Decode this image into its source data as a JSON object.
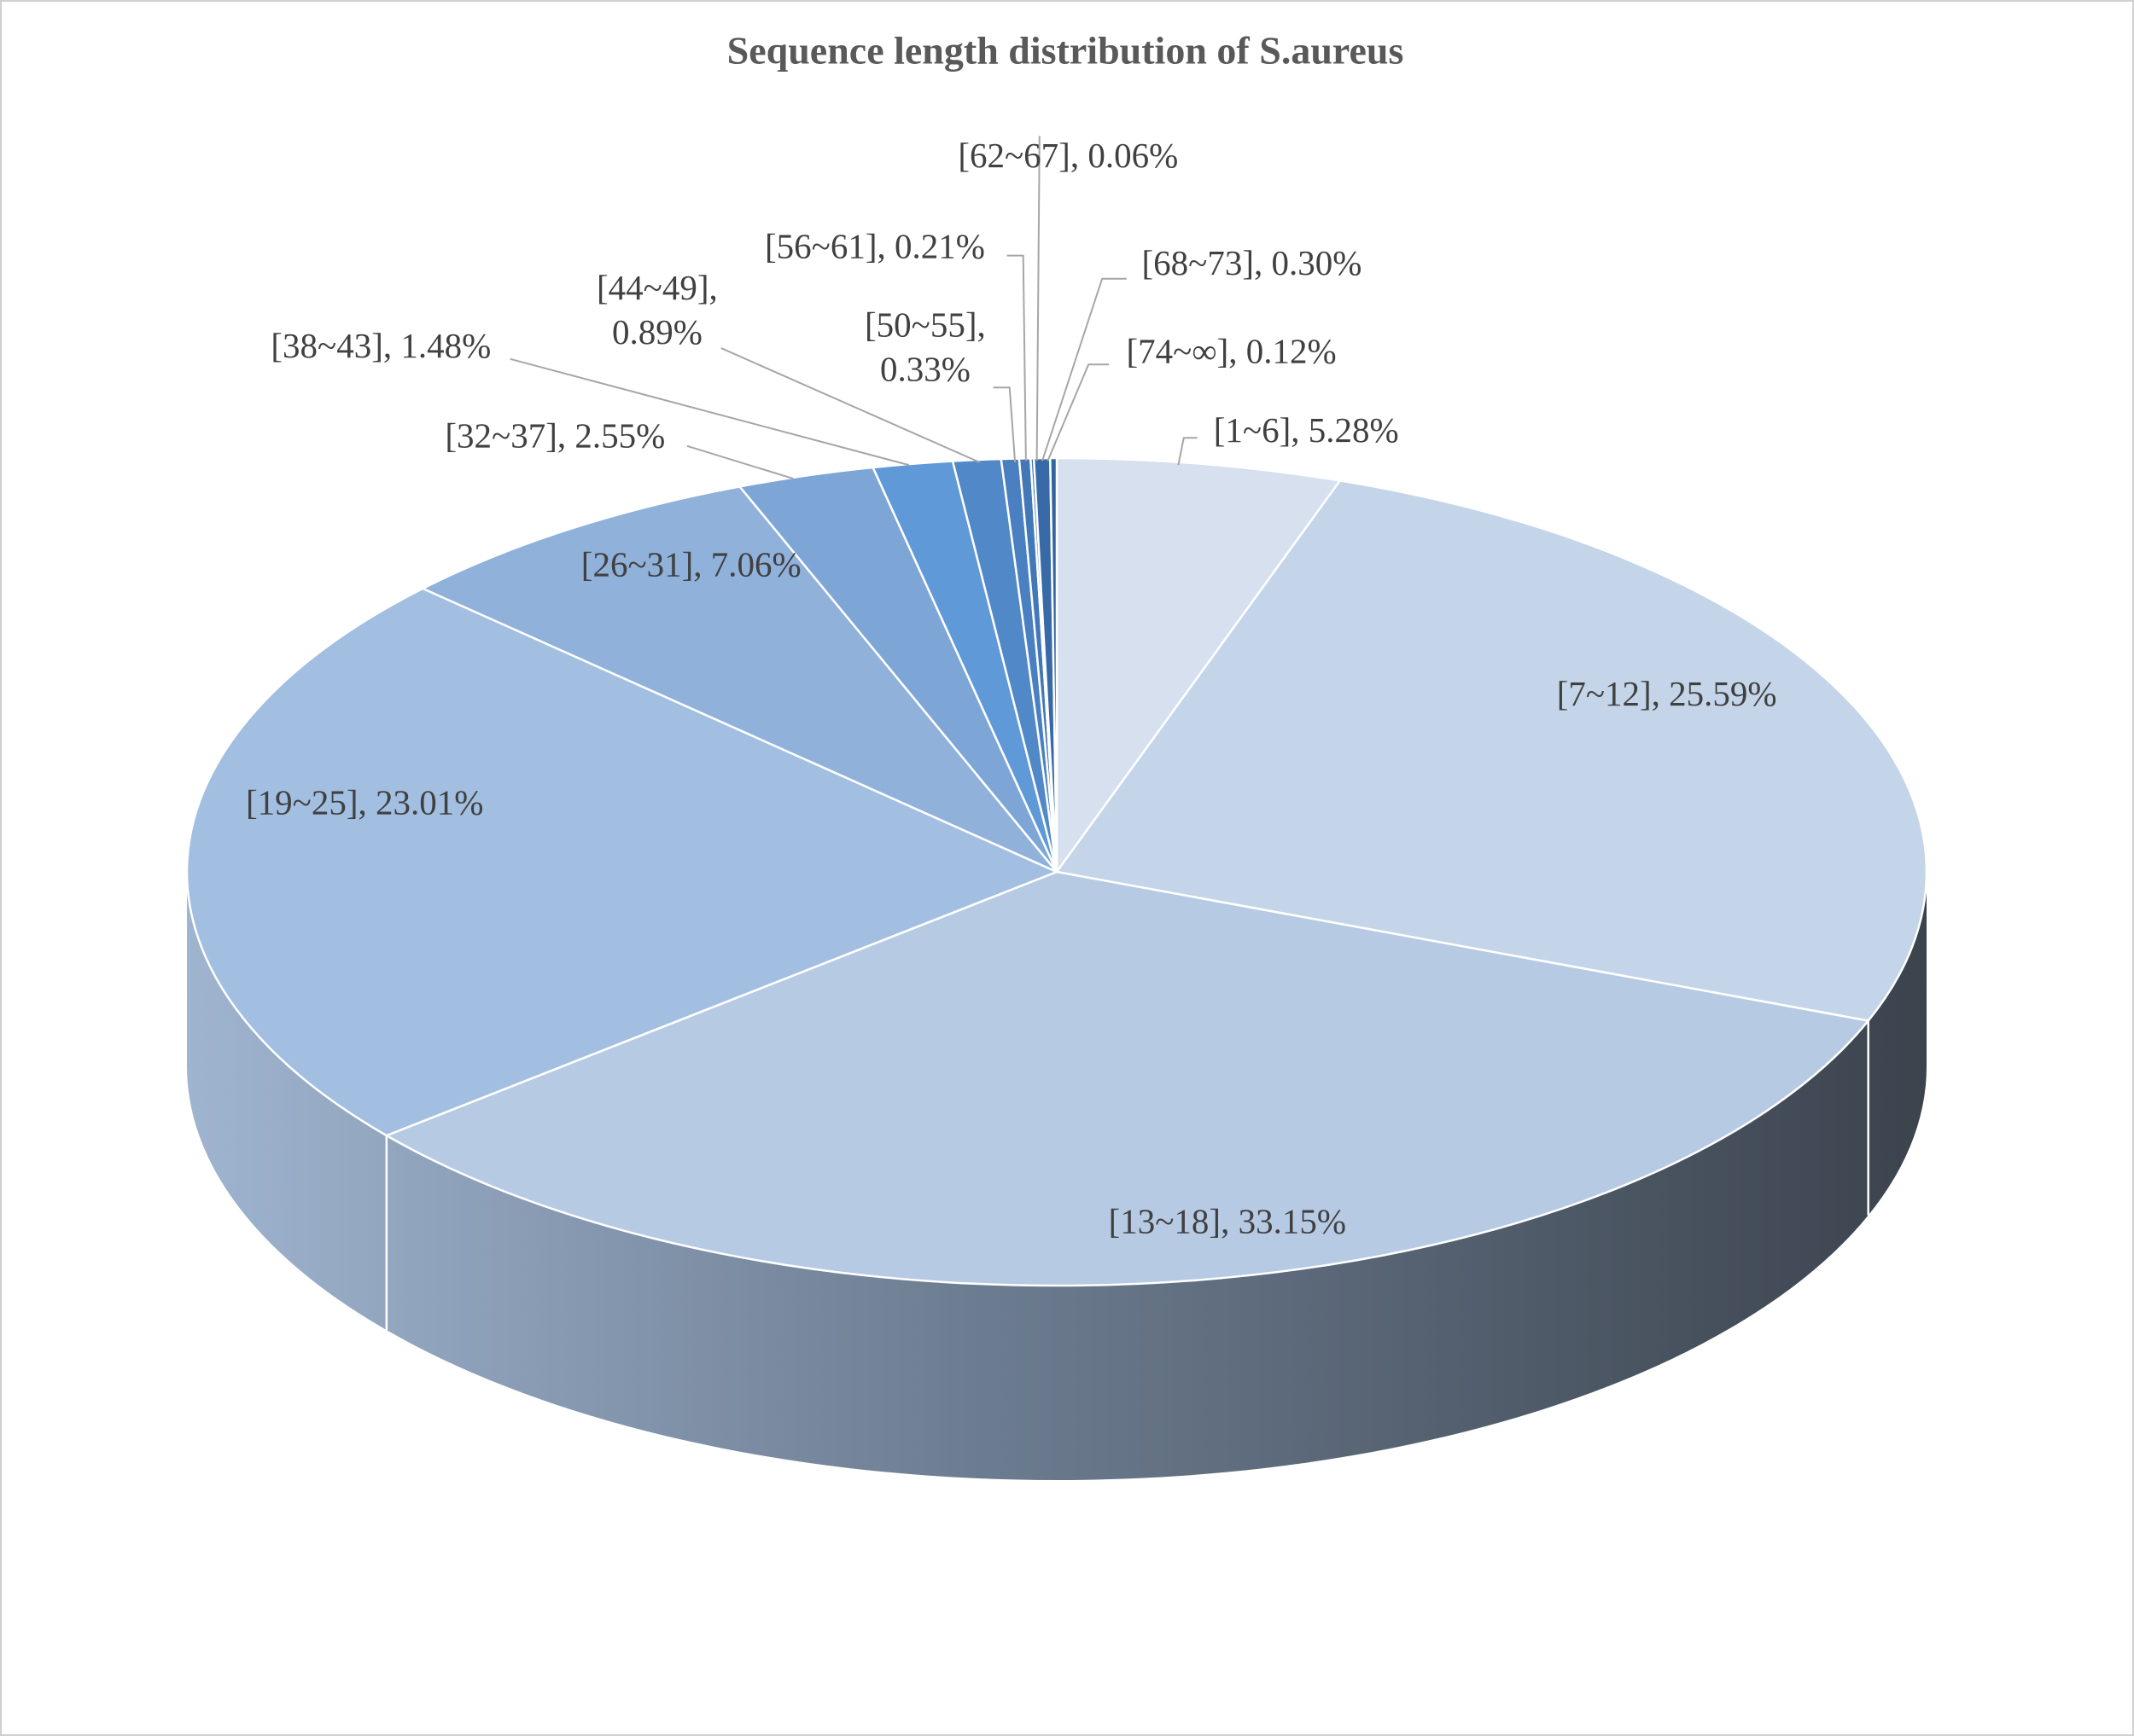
{
  "chart_data": {
    "type": "pie",
    "title": "Sequence length distribution of S.aureus",
    "values": [
      5.28,
      25.59,
      33.15,
      23.01,
      7.06,
      2.55,
      1.48,
      0.89,
      0.33,
      0.21,
      0.06,
      0.3,
      0.12
    ],
    "value_labels": [
      "[1~6], 5.28%",
      "[7~12], 25.59%",
      "[13~18], 33.15%",
      "[19~25], 23.01%",
      "[26~31], 7.06%",
      "[32~37], 2.55%",
      "[38~43], 1.48%",
      "[44~49], 0.89%",
      "[50~55], 0.33%",
      "[56~61], 0.21%",
      "[62~67], 0.06%",
      "[68~73], 0.30%",
      "[74~∞], 0.12%"
    ],
    "colors": [
      "#d6e0ee",
      "#c4d5e9",
      "#b7cae4",
      "#a2bfe1",
      "#8fb1da",
      "#7da6d7",
      "#5f99d8",
      "#5189c8",
      "#4a80c2",
      "#4277b8",
      "#3d70b0",
      "#386aa8",
      "#3464a0"
    ]
  }
}
